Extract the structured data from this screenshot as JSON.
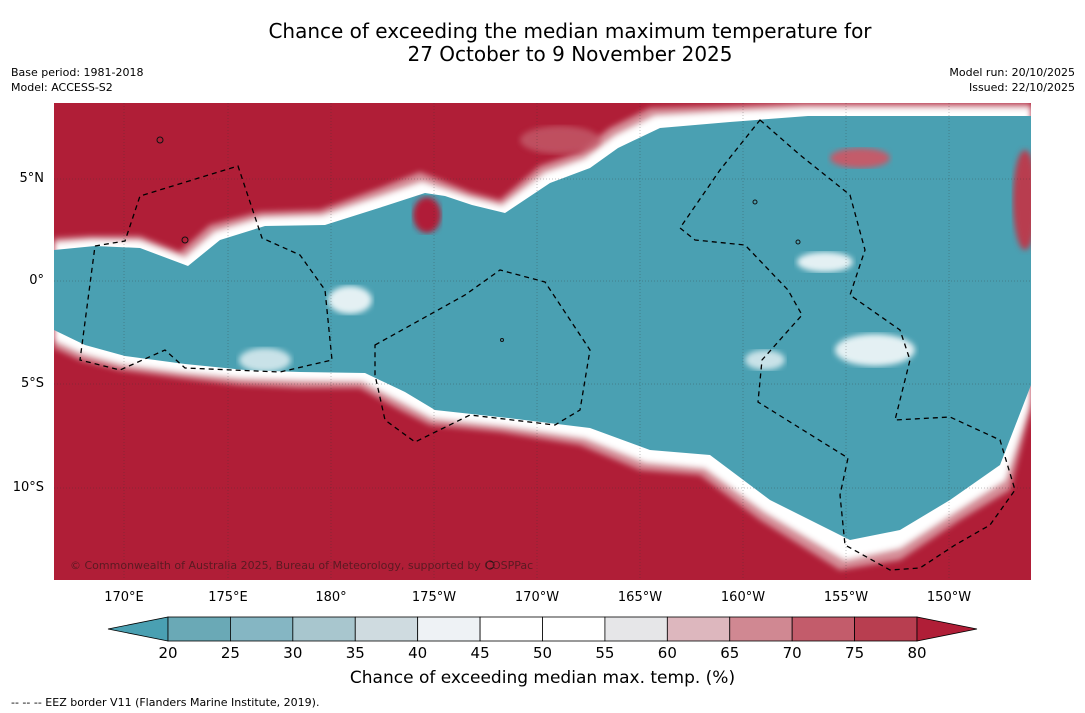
{
  "title": {
    "line1": "Chance of exceeding the median maximum temperature for",
    "line2": "27 October to 9 November 2025"
  },
  "meta_left": {
    "base_period": "Base period: 1981-2018",
    "model": "Model: ACCESS-S2"
  },
  "meta_right": {
    "model_run": "Model run: 20/10/2025",
    "issued": "Issued: 22/10/2025"
  },
  "map": {
    "lat_labels": [
      "5°N",
      "0°",
      "5°S",
      "10°S"
    ],
    "lon_labels": [
      "170°E",
      "175°E",
      "180°",
      "175°W",
      "170°W",
      "165°W",
      "160°W",
      "155°W",
      "150°W"
    ],
    "copyright": "© Commonwealth of Australia 2025, Bureau of Meteorology, supported by COSPPac"
  },
  "colorbar": {
    "ticks": [
      "20",
      "25",
      "30",
      "35",
      "40",
      "45",
      "50",
      "55",
      "60",
      "65",
      "70",
      "75",
      "80"
    ],
    "colors": [
      "#4aa0b2",
      "#6aa9b6",
      "#85b6c3",
      "#a8c6ce",
      "#cfdbe0",
      "#eef2f5",
      "#ffffff",
      "#ffffff",
      "#e6e6e8",
      "#ddb7be",
      "#d08892",
      "#c35c6b",
      "#b83e50",
      "#b01e37"
    ],
    "label": "Chance of exceeding median max. temp. (%)"
  },
  "legend_note": "--  --  -- EEZ border V11 (Flanders Marine Institute, 2019)."
}
